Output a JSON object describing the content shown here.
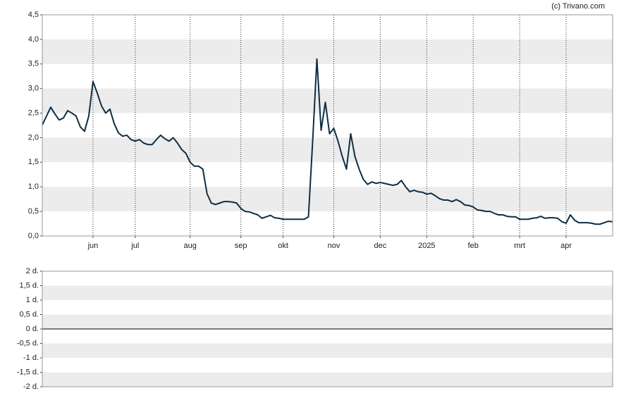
{
  "chart_data": [
    {
      "type": "line",
      "source": "(c) Trivano.com",
      "color": "#0d2e45",
      "grid": true,
      "categories": [
        null,
        null,
        null,
        null,
        null,
        null,
        null,
        null,
        null,
        null,
        null,
        null,
        "jun",
        null,
        null,
        null,
        null,
        null,
        null,
        null,
        null,
        null,
        "jul",
        null,
        null,
        null,
        null,
        null,
        null,
        null,
        null,
        null,
        null,
        null,
        null,
        "aug",
        null,
        null,
        null,
        null,
        null,
        null,
        null,
        null,
        null,
        null,
        null,
        "sep",
        null,
        null,
        null,
        null,
        null,
        null,
        null,
        null,
        null,
        "okt",
        null,
        null,
        null,
        null,
        null,
        null,
        null,
        null,
        null,
        null,
        null,
        "nov",
        null,
        null,
        null,
        null,
        null,
        null,
        null,
        null,
        null,
        null,
        "dec",
        null,
        null,
        null,
        null,
        null,
        null,
        null,
        null,
        null,
        null,
        "2025",
        null,
        null,
        null,
        null,
        null,
        null,
        null,
        null,
        null,
        null,
        "feb",
        null,
        null,
        null,
        null,
        null,
        null,
        null,
        null,
        null,
        null,
        "mrt",
        null,
        null,
        null,
        null,
        null,
        null,
        null,
        null,
        null,
        null,
        "apr",
        null,
        null,
        null,
        null,
        null,
        null,
        null,
        null,
        null,
        null,
        null
      ],
      "values": [
        2.26,
        2.44,
        2.62,
        2.48,
        2.36,
        2.4,
        2.55,
        2.5,
        2.44,
        2.22,
        2.13,
        2.44,
        3.14,
        2.91,
        2.65,
        2.5,
        2.58,
        2.29,
        2.1,
        2.03,
        2.05,
        1.96,
        1.93,
        1.96,
        1.89,
        1.86,
        1.86,
        1.96,
        2.05,
        1.98,
        1.93,
        2.0,
        1.89,
        1.76,
        1.68,
        1.5,
        1.42,
        1.42,
        1.36,
        0.86,
        0.67,
        0.64,
        0.67,
        0.7,
        0.7,
        0.69,
        0.67,
        0.56,
        0.5,
        0.49,
        0.46,
        0.43,
        0.36,
        0.39,
        0.42,
        0.37,
        0.36,
        0.34,
        0.34,
        0.34,
        0.34,
        0.34,
        0.34,
        0.39,
        1.93,
        3.6,
        2.15,
        2.72,
        2.08,
        2.19,
        1.93,
        1.62,
        1.36,
        2.08,
        1.62,
        1.36,
        1.15,
        1.05,
        1.1,
        1.07,
        1.09,
        1.07,
        1.05,
        1.03,
        1.05,
        1.13,
        1.0,
        0.9,
        0.93,
        0.9,
        0.89,
        0.85,
        0.87,
        0.82,
        0.76,
        0.73,
        0.73,
        0.7,
        0.74,
        0.7,
        0.63,
        0.62,
        0.59,
        0.53,
        0.52,
        0.5,
        0.5,
        0.46,
        0.43,
        0.43,
        0.4,
        0.39,
        0.39,
        0.34,
        0.34,
        0.34,
        0.36,
        0.37,
        0.4,
        0.36,
        0.37,
        0.37,
        0.36,
        0.29,
        0.26,
        0.43,
        0.32,
        0.27,
        0.27,
        0.27,
        0.26,
        0.24,
        0.24,
        0.27,
        0.3,
        0.29
      ],
      "ylim": [
        0,
        4.5
      ],
      "yticks": [
        {
          "value": 0,
          "label": "0,0"
        },
        {
          "value": 0.5,
          "label": "0,5"
        },
        {
          "value": 1,
          "label": "1,0"
        },
        {
          "value": 1.5,
          "label": "1,5"
        },
        {
          "value": 2,
          "label": "2,0"
        },
        {
          "value": 2.5,
          "label": "2,5"
        },
        {
          "value": 3,
          "label": "3,0"
        },
        {
          "value": 3.5,
          "label": "3,5"
        },
        {
          "value": 4,
          "label": "4,0"
        },
        {
          "value": 4.5,
          "label": "4,5"
        }
      ]
    },
    {
      "type": "line",
      "grid": true,
      "ylim": [
        -2,
        2
      ],
      "yticks": [
        {
          "value": 2,
          "label": "2 d."
        },
        {
          "value": 1.5,
          "label": "1,5 d."
        },
        {
          "value": 1,
          "label": "1 d."
        },
        {
          "value": 0.5,
          "label": "0,5 d."
        },
        {
          "value": 0,
          "label": "0 d."
        },
        {
          "value": -0.5,
          "label": "-0,5 d."
        },
        {
          "value": -1,
          "label": "-1 d."
        },
        {
          "value": -1.5,
          "label": "-1,5 d."
        },
        {
          "value": -2,
          "label": "-2 d."
        }
      ]
    }
  ]
}
